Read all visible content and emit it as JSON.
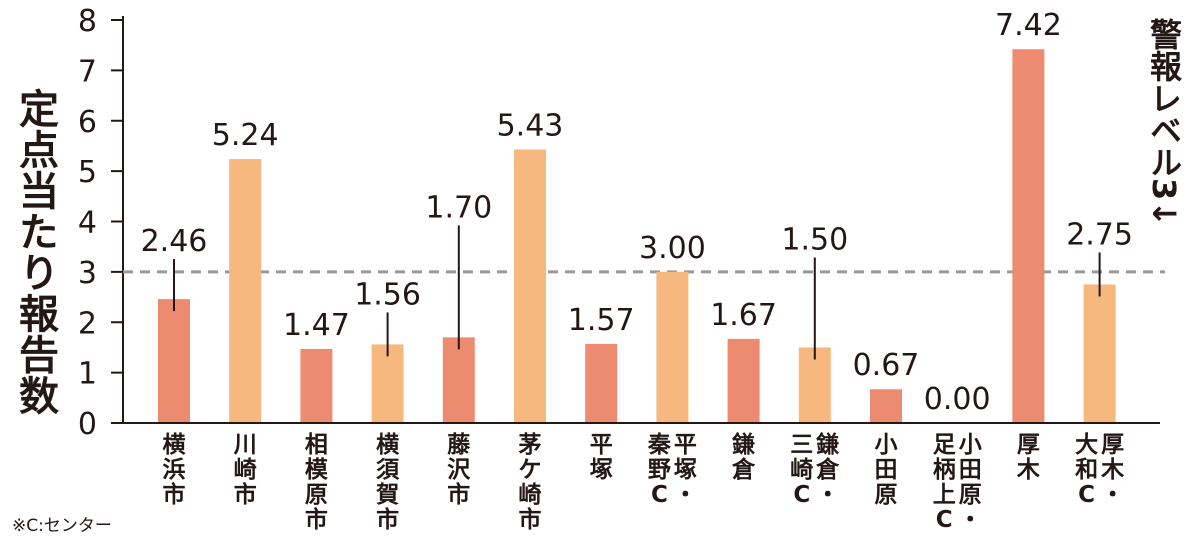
{
  "chart_data": {
    "type": "bar",
    "ylabel": "定点当たり報告数",
    "ylim": [
      0,
      8
    ],
    "yticks": [
      0,
      1,
      2,
      3,
      4,
      5,
      6,
      7,
      8
    ],
    "grid": false,
    "reference_line": {
      "value": 3,
      "label": "警報レベル3↓",
      "style": "dashed"
    },
    "categories": [
      "横浜市",
      "川崎市",
      "相模原市",
      "横須賀市",
      "藤沢市",
      "茅ケ崎市",
      "平塚",
      "平塚・秦野C",
      "鎌倉",
      "鎌倉・三崎C",
      "小田原",
      "小田原・足柄上C",
      "厚木",
      "厚木・大和C"
    ],
    "values": [
      2.46,
      5.24,
      1.47,
      1.56,
      1.7,
      5.43,
      1.57,
      3.0,
      1.67,
      1.5,
      0.67,
      0.0,
      7.42,
      2.75
    ],
    "value_labels": [
      "2.46",
      "5.24",
      "1.47",
      "1.56",
      "1.70",
      "5.43",
      "1.57",
      "3.00",
      "1.67",
      "1.50",
      "0.67",
      "0.00",
      "7.42",
      "2.75"
    ],
    "bar_colors": [
      "#ec8b6f",
      "#f6b87e",
      "#ec8b6f",
      "#f6b87e",
      "#ec8b6f",
      "#f6b87e",
      "#ec8b6f",
      "#f6b87e",
      "#ec8b6f",
      "#f6b87e",
      "#ec8b6f",
      "#f6b87e",
      "#ec8b6f",
      "#f6b87e"
    ],
    "colors": {
      "dark_bar": "#ec8b6f",
      "light_bar": "#f6b87e",
      "reference": "#999999",
      "text": "#231815"
    },
    "footnote": "※C:センター"
  }
}
